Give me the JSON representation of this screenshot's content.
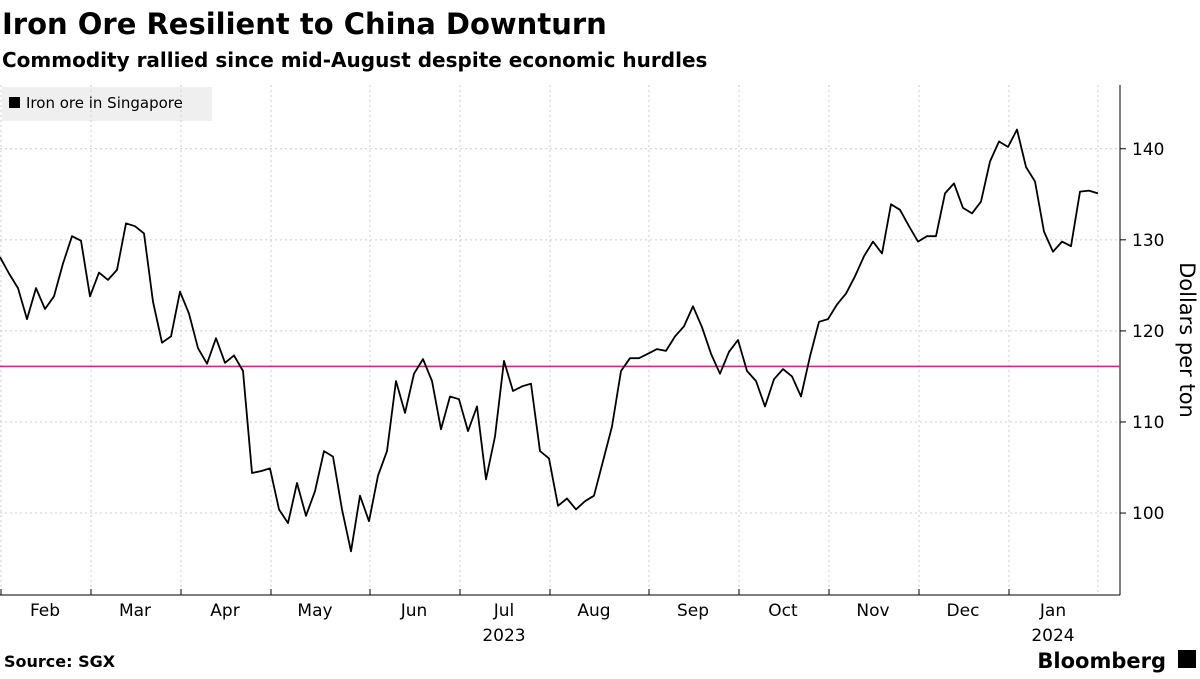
{
  "chart_data": {
    "type": "line",
    "title": "Iron Ore Resilient to China Downturn",
    "subtitle": "Commodity rallied since mid-August despite economic hurdles",
    "y_label": "Dollars per ton",
    "source": "Source: SGX",
    "brand": "Bloomberg",
    "years": [
      "2023",
      "2024"
    ],
    "categories": [
      null,
      null,
      null,
      null,
      null,
      "Feb",
      null,
      null,
      null,
      null,
      null,
      null,
      null,
      null,
      null,
      "Mar",
      null,
      null,
      null,
      null,
      null,
      null,
      null,
      null,
      null,
      "Apr",
      null,
      null,
      null,
      null,
      null,
      null,
      null,
      null,
      null,
      "May",
      null,
      null,
      null,
      null,
      null,
      null,
      null,
      null,
      null,
      null,
      "Jun",
      null,
      null,
      null,
      null,
      null,
      null,
      null,
      null,
      null,
      "Jul",
      null,
      null,
      null,
      null,
      null,
      null,
      null,
      null,
      null,
      "Aug",
      null,
      null,
      null,
      null,
      null,
      null,
      null,
      null,
      null,
      null,
      "Sep",
      null,
      null,
      null,
      null,
      null,
      null,
      null,
      null,
      null,
      "Oct",
      null,
      null,
      null,
      null,
      null,
      null,
      null,
      null,
      null,
      "Nov",
      null,
      null,
      null,
      null,
      null,
      null,
      null,
      null,
      null,
      "Dec",
      null,
      null,
      null,
      null,
      null,
      null,
      null,
      null,
      null,
      "Jan",
      null,
      null,
      null,
      null,
      null
    ],
    "series": [
      {
        "name": "Iron ore in Singapore",
        "color": "#000000",
        "values": [
          128.1,
          126.3,
          124.7,
          121.3,
          124.7,
          122.4,
          123.8,
          127.4,
          130.4,
          129.9,
          123.8,
          126.4,
          125.6,
          126.7,
          131.8,
          131.5,
          130.7,
          123.2,
          118.7,
          119.4,
          124.3,
          121.9,
          118.1,
          116.4,
          119.2,
          116.5,
          117.3,
          115.6,
          104.4,
          104.6,
          104.9,
          100.4,
          98.9,
          103.3,
          99.7,
          102.4,
          106.8,
          106.2,
          100.4,
          95.8,
          101.9,
          99.1,
          104.1,
          106.8,
          114.5,
          111.0,
          115.3,
          116.9,
          114.5,
          109.2,
          112.8,
          112.5,
          109.0,
          111.7,
          103.7,
          108.4,
          116.7,
          113.4,
          113.9,
          114.2,
          106.8,
          106.0,
          100.8,
          101.6,
          100.4,
          101.3,
          101.9,
          105.7,
          109.5,
          115.6,
          117.0,
          117.0,
          117.5,
          118.0,
          117.8,
          119.4,
          120.5,
          122.7,
          120.4,
          117.5,
          115.3,
          117.7,
          119.0,
          115.6,
          114.5,
          111.7,
          114.7,
          115.8,
          115.0,
          112.8,
          117.2,
          121.0,
          121.3,
          122.9,
          124.1,
          126.0,
          128.2,
          129.8,
          128.5,
          133.9,
          133.3,
          131.5,
          129.8,
          130.4,
          130.4,
          135.1,
          136.2,
          133.5,
          132.9,
          134.2,
          138.6,
          140.8,
          140.2,
          142.1,
          138.0,
          136.4,
          130.9,
          128.7,
          129.8,
          129.3,
          135.3,
          135.4,
          135.1
        ]
      }
    ],
    "reference_line": {
      "value": 116.1,
      "color": "#e8178a"
    },
    "ylim": [
      91,
      147
    ],
    "yticks": [
      100,
      110,
      120,
      130,
      140
    ],
    "grid": true
  }
}
